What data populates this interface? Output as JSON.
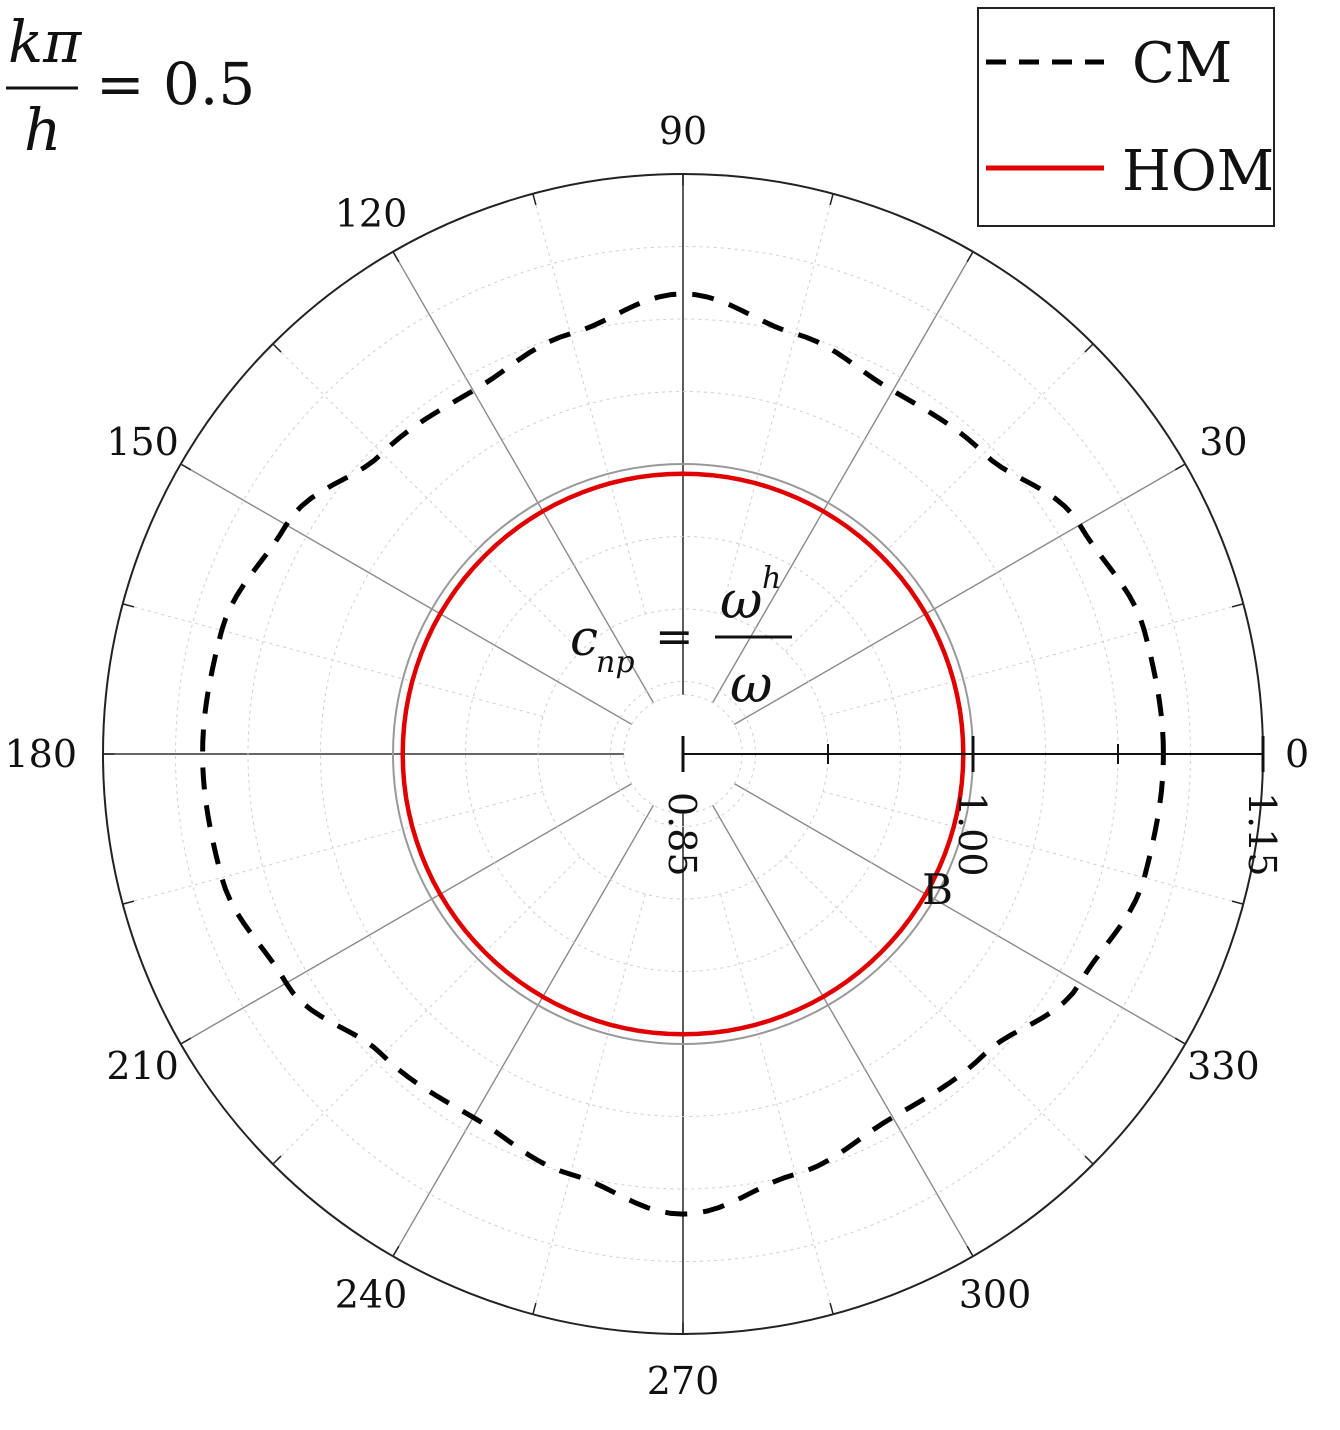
{
  "chart_data": {
    "type": "polar-line",
    "title_expression": {
      "numerator": "kπ",
      "denominator": "h",
      "equals_value": "= 0.5"
    },
    "center_annotation": {
      "lhs": "c",
      "lhs_sub": "np",
      "equals": "=",
      "numerator": "ω",
      "numerator_sup": "h",
      "denominator": "ω"
    },
    "angular_ticks": [
      {
        "angle": 0,
        "label": "0"
      },
      {
        "angle": 30,
        "label": "30"
      },
      {
        "angle": 90,
        "label": "90"
      },
      {
        "angle": 120,
        "label": "120"
      },
      {
        "angle": 150,
        "label": "150"
      },
      {
        "angle": 180,
        "label": "180"
      },
      {
        "angle": 210,
        "label": "210"
      },
      {
        "angle": 240,
        "label": "240"
      },
      {
        "angle": 270,
        "label": "270"
      },
      {
        "angle": 300,
        "label": "300"
      },
      {
        "angle": 330,
        "label": "330"
      }
    ],
    "radial_ticks": [
      {
        "value": 0.85,
        "label": "0.85"
      },
      {
        "value": 1.0,
        "label": "1.00"
      },
      {
        "value": 1.15,
        "label": "1.15"
      }
    ],
    "rlim": [
      0.85,
      1.15
    ],
    "point_annotation": {
      "label": "B",
      "angle": 330,
      "r": 1.0
    },
    "legend": {
      "position": "top-right",
      "entries": [
        "CM",
        "HOM"
      ]
    },
    "series": [
      {
        "name": "CM",
        "style": "dashed",
        "color": "#000000",
        "theta": [
          0,
          15,
          30,
          45,
          60,
          75,
          90,
          105,
          120,
          135,
          150,
          165,
          180,
          195,
          210,
          225,
          240,
          255,
          270,
          285,
          300,
          315,
          330,
          345,
          360
        ],
        "r": [
          1.0985,
          1.097,
          1.087,
          1.07,
          1.067,
          1.075,
          1.088,
          1.075,
          1.067,
          1.07,
          1.087,
          1.097,
          1.0985,
          1.097,
          1.087,
          1.07,
          1.067,
          1.075,
          1.088,
          1.075,
          1.067,
          1.07,
          1.087,
          1.097,
          1.0985
        ]
      },
      {
        "name": "HOM",
        "style": "solid",
        "color": "#e00000",
        "theta": [
          0,
          30,
          60,
          90,
          120,
          150,
          180,
          210,
          240,
          270,
          300,
          330,
          360
        ],
        "r": [
          0.995,
          0.995,
          0.995,
          0.995,
          0.995,
          0.995,
          0.995,
          0.995,
          0.995,
          0.995,
          0.995,
          0.995,
          0.995
        ]
      }
    ],
    "reference_circle": {
      "r": 1.0,
      "color": "#999999"
    }
  }
}
